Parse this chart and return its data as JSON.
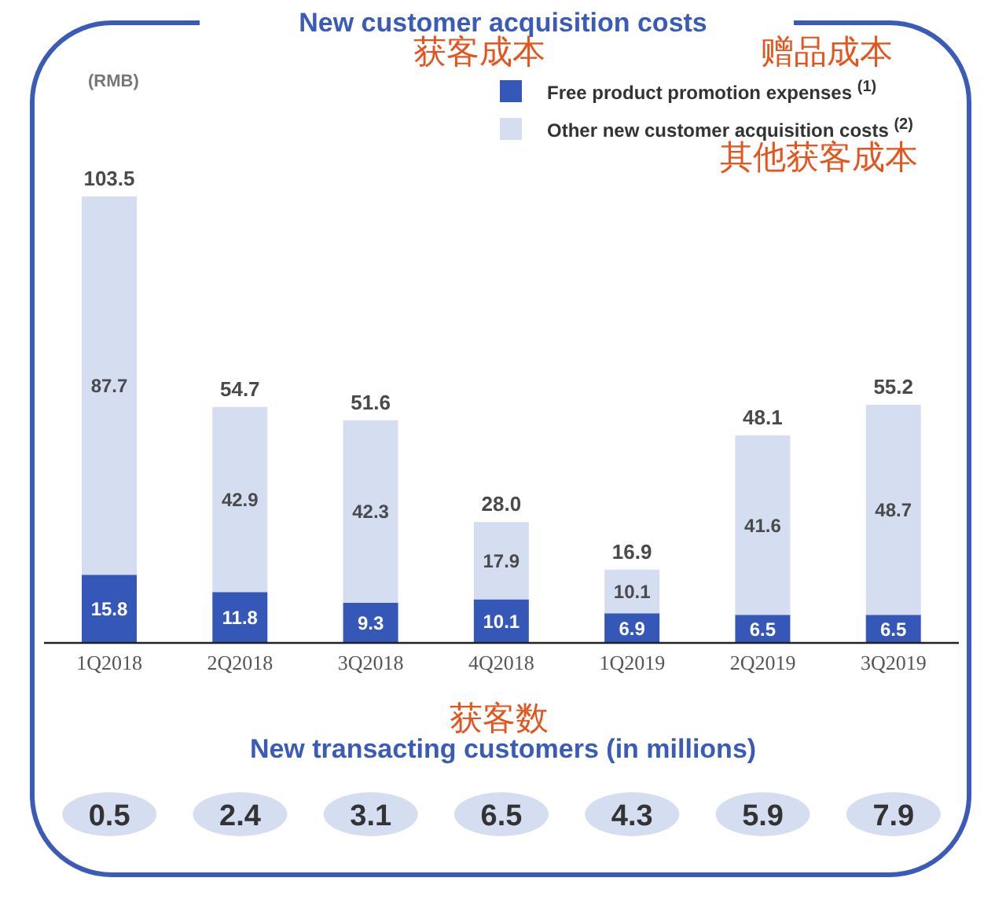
{
  "chart_data": [
    {
      "type": "bar",
      "title": "New customer acquisition costs",
      "ylabel": "(RMB)",
      "categories": [
        "1Q2018",
        "2Q2018",
        "3Q2018",
        "4Q2018",
        "1Q2019",
        "2Q2019",
        "3Q2019"
      ],
      "series": [
        {
          "name": "Free product promotion expenses $^{(1)}$",
          "color": "#3557b7",
          "values": [
            15.8,
            11.8,
            9.3,
            10.1,
            6.9,
            6.5,
            6.5
          ]
        },
        {
          "name": "Other new customer acquisition costs $^{(2)}$",
          "color": "#d5ddf0",
          "values": [
            87.7,
            42.9,
            42.3,
            17.9,
            10.1,
            41.6,
            48.7
          ]
        }
      ],
      "stacked": true,
      "data_labels": true,
      "totals": [
        "103.5",
        "54.7",
        "51.6",
        "28.0",
        "16.9",
        "48.1",
        "55.2"
      ],
      "tick_labels": "x",
      "legend": "top right",
      "annotations": [
        "获客成本",
        "赠品成本",
        "其他获客成本"
      ]
    },
    {
      "type": "other",
      "title": "New transacting customers (in millions)",
      "values": [
        0.5,
        2.4,
        3.1,
        6.5,
        4.3,
        5.9,
        7.9
      ],
      "color": "#d5ddf0",
      "data_labels": true,
      "annotations": [
        "获客数"
      ]
    }
  ]
}
